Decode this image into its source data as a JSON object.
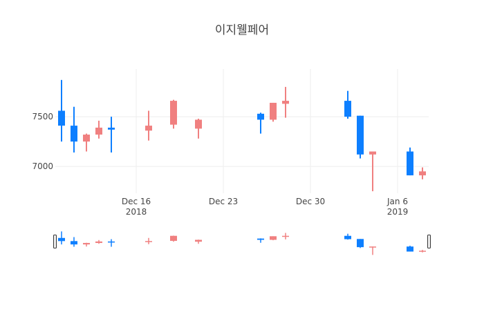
{
  "chart_data": {
    "type": "candlestick",
    "title": "이지웰페어",
    "xlabel": "",
    "ylabel": "",
    "ylim": [
      6730,
      7980
    ],
    "y_ticks": [
      7000,
      7500
    ],
    "y_tick_labels": [
      "7000",
      "7500"
    ],
    "x_ticks": [
      {
        "date": "2018-12-16",
        "line1": "Dec 16",
        "line2": "2018"
      },
      {
        "date": "2018-12-23",
        "line1": "Dec 23",
        "line2": ""
      },
      {
        "date": "2018-12-30",
        "line1": "Dec 30",
        "line2": ""
      },
      {
        "date": "2019-01-06",
        "line1": "Jan 6",
        "line2": "2019"
      }
    ],
    "grid": true,
    "range_slider": true,
    "increasing_color": "#f08080",
    "decreasing_color": "#0d7fff",
    "candles": [
      {
        "date": "2018-12-10",
        "open": 7560,
        "high": 7870,
        "low": 7250,
        "close": 7410
      },
      {
        "date": "2018-12-11",
        "open": 7410,
        "high": 7600,
        "low": 7140,
        "close": 7250
      },
      {
        "date": "2018-12-12",
        "open": 7250,
        "high": 7330,
        "low": 7150,
        "close": 7320
      },
      {
        "date": "2018-12-13",
        "open": 7320,
        "high": 7460,
        "low": 7280,
        "close": 7390
      },
      {
        "date": "2018-12-14",
        "open": 7390,
        "high": 7500,
        "low": 7140,
        "close": 7370
      },
      {
        "date": "2018-12-17",
        "open": 7360,
        "high": 7560,
        "low": 7260,
        "close": 7410
      },
      {
        "date": "2018-12-19",
        "open": 7420,
        "high": 7670,
        "low": 7380,
        "close": 7660
      },
      {
        "date": "2018-12-21",
        "open": 7380,
        "high": 7480,
        "low": 7280,
        "close": 7470
      },
      {
        "date": "2018-12-26",
        "open": 7530,
        "high": 7540,
        "low": 7330,
        "close": 7470
      },
      {
        "date": "2018-12-27",
        "open": 7470,
        "high": 7640,
        "low": 7450,
        "close": 7640
      },
      {
        "date": "2018-12-28",
        "open": 7630,
        "high": 7800,
        "low": 7490,
        "close": 7660
      },
      {
        "date": "2019-01-02",
        "open": 7660,
        "high": 7760,
        "low": 7480,
        "close": 7500
      },
      {
        "date": "2019-01-03",
        "open": 7510,
        "high": 7510,
        "low": 7080,
        "close": 7120
      },
      {
        "date": "2019-01-04",
        "open": 7120,
        "high": 7150,
        "low": 6750,
        "close": 7150
      },
      {
        "date": "2019-01-07",
        "open": 7150,
        "high": 7190,
        "low": 6910,
        "close": 6910
      },
      {
        "date": "2019-01-08",
        "open": 6910,
        "high": 6990,
        "low": 6870,
        "close": 6950
      }
    ]
  }
}
